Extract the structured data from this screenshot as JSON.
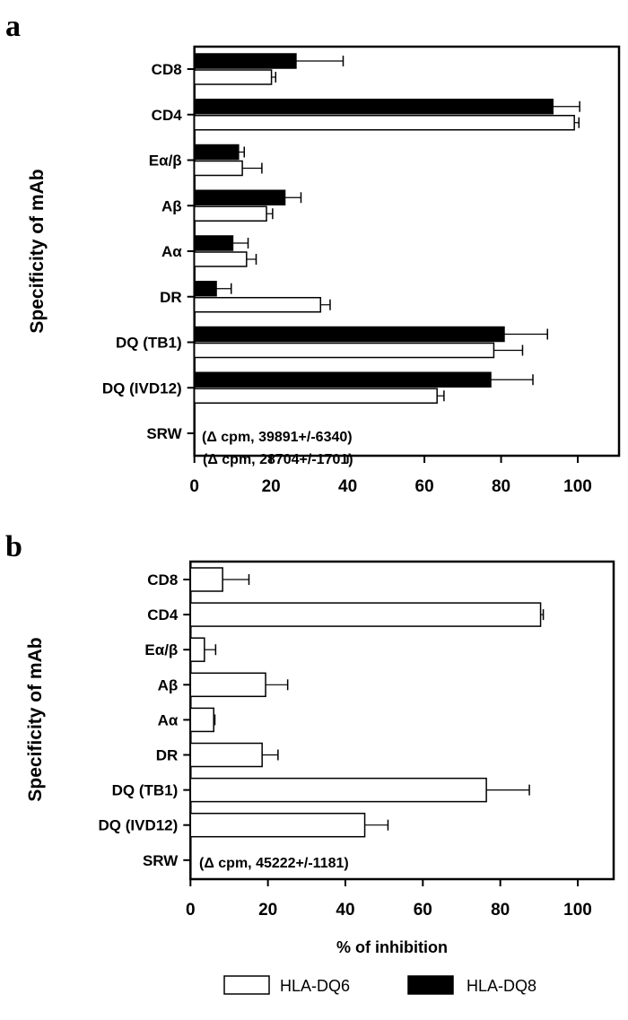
{
  "chart_data": [
    {
      "type": "bar",
      "orientation": "horizontal",
      "panel_label": "a",
      "ylabel": "Specificity of mAb",
      "xlabel": "",
      "categories": [
        "CD8",
        "CD4",
        "Eα/β",
        "Aβ",
        "Aα",
        "DR",
        "DQ (TB1)",
        "DQ (IVD12)",
        "SRW"
      ],
      "xlim": [
        0,
        110
      ],
      "xticks": [
        0,
        20,
        40,
        60,
        80,
        100
      ],
      "series": [
        {
          "name": "HLA-DQ8",
          "color": "#000000",
          "values": [
            26.5,
            93.5,
            11.5,
            23.6,
            10,
            5.7,
            80.8,
            77.3,
            null
          ],
          "error_upper": [
            38.8,
            100.5,
            13,
            27.8,
            14,
            9.6,
            92.1,
            88.3,
            null
          ]
        },
        {
          "name": "HLA-DQ6",
          "color": "#ffffff",
          "values": [
            20.1,
            99.1,
            12.5,
            18.8,
            13.6,
            32.9,
            78.1,
            63.3,
            null
          ],
          "error_upper": [
            21.2,
            100.3,
            17.6,
            20.4,
            16.1,
            35.4,
            85.6,
            65.1,
            null
          ]
        }
      ],
      "annotations": [
        "(Δ cpm, 39891+/-6340)",
        "(Δ cpm, 28704+/-1701)"
      ]
    },
    {
      "type": "bar",
      "orientation": "horizontal",
      "panel_label": "b",
      "ylabel": "Specificity of  mAb",
      "xlabel": "% of inhibition",
      "categories": [
        "CD8",
        "CD4",
        "Eα/β",
        "Aβ",
        "Aα",
        "DR",
        "DQ (TB1)",
        "DQ (IVD12)",
        "SRW"
      ],
      "xlim": [
        0,
        110
      ],
      "xticks": [
        0,
        20,
        40,
        60,
        80,
        100
      ],
      "series": [
        {
          "name": "HLA-DQ6",
          "color": "#ffffff",
          "values": [
            8.3,
            90.4,
            3.6,
            19.4,
            6.0,
            18.5,
            76.4,
            45,
            null
          ],
          "error_upper": [
            15.1,
            91.1,
            6.5,
            25.1,
            6.3,
            22.6,
            87.5,
            51,
            null
          ]
        }
      ],
      "annotations": [
        "(Δ cpm, 45222+/-1181)"
      ]
    }
  ],
  "legend": [
    {
      "label": "HLA-DQ6",
      "color": "#ffffff"
    },
    {
      "label": "HLA-DQ8",
      "color": "#000000"
    }
  ]
}
